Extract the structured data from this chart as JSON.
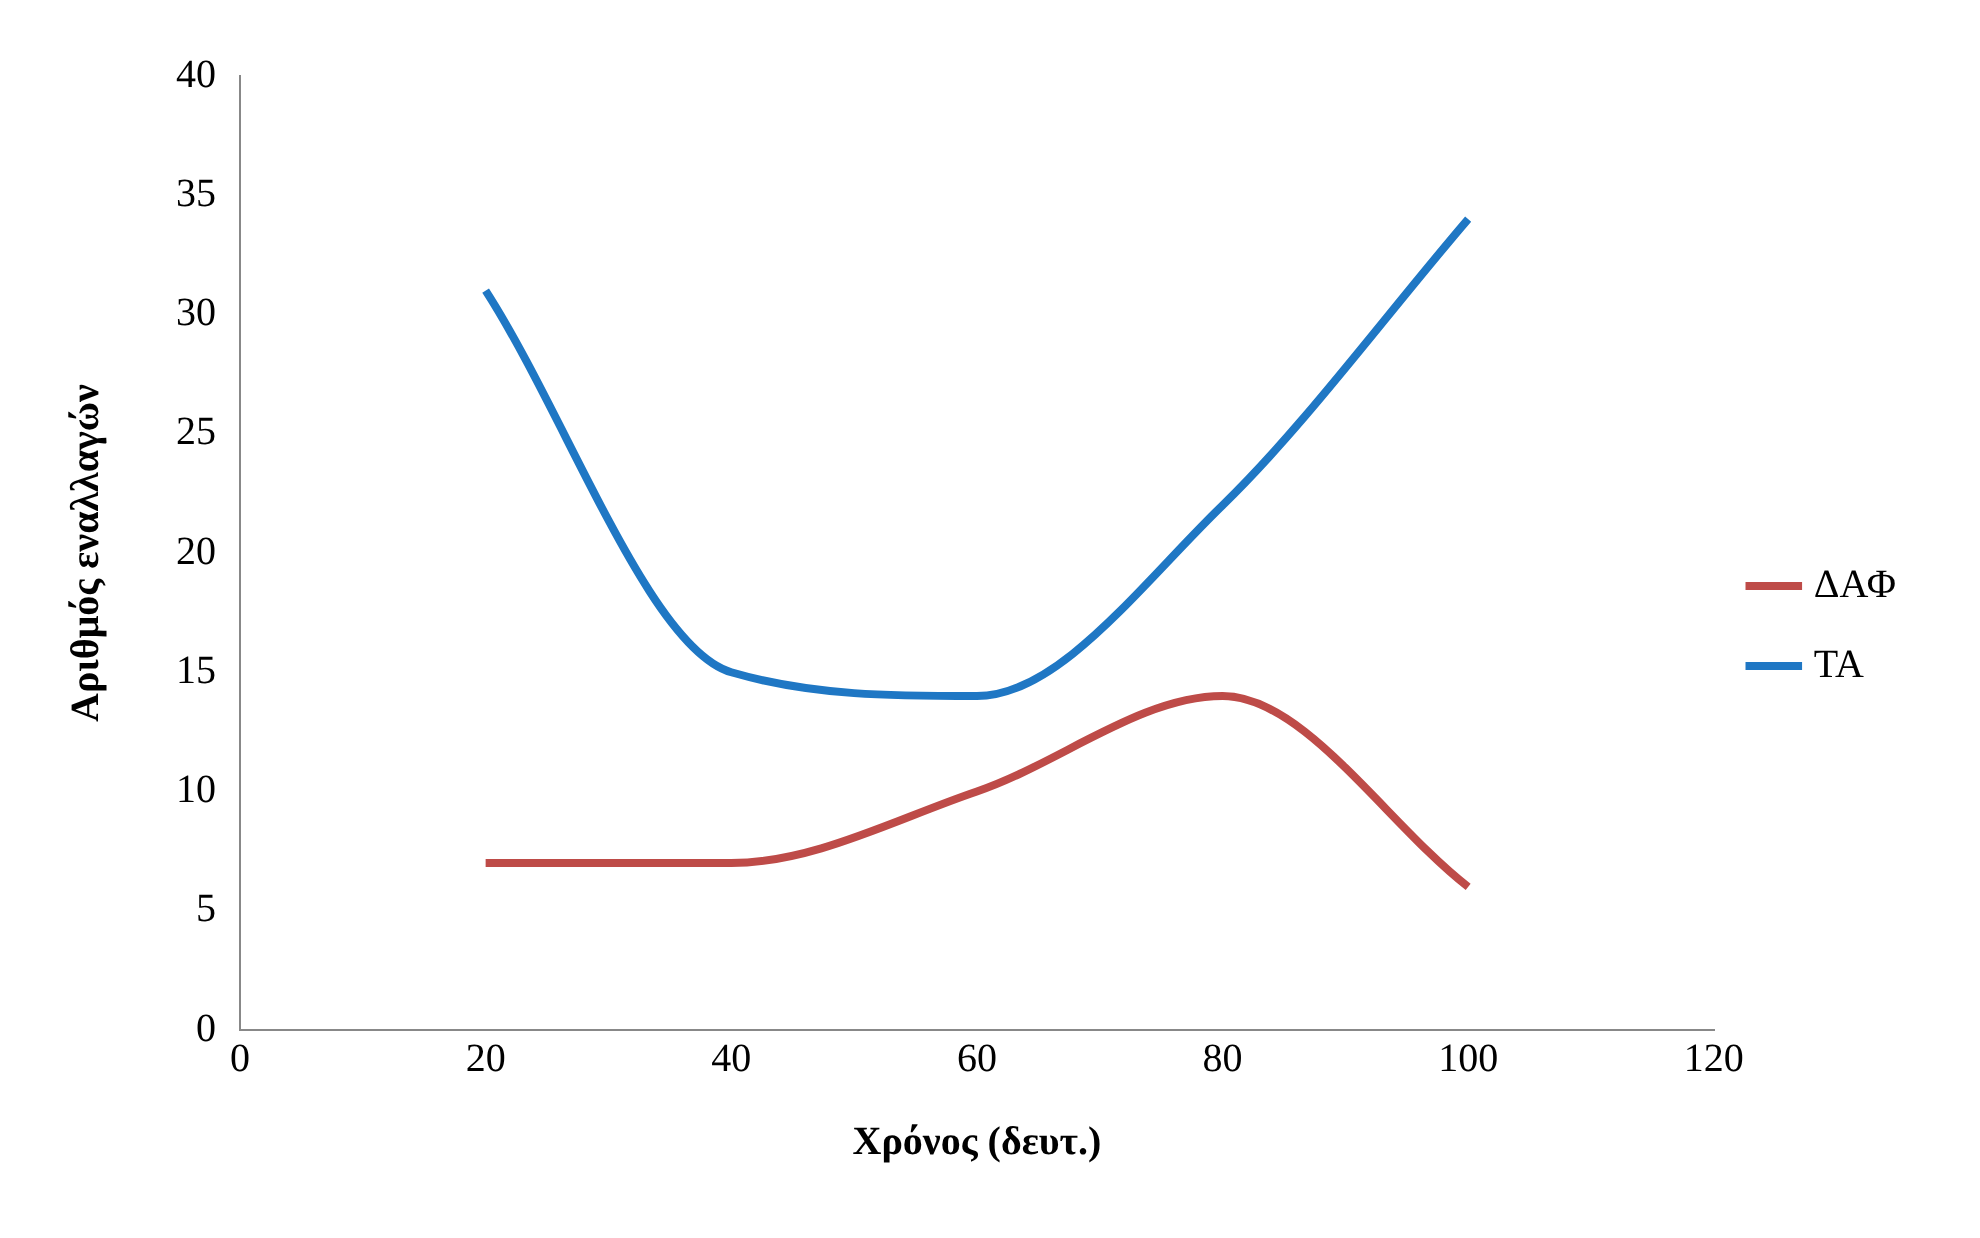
{
  "chart_data": {
    "type": "line",
    "xlabel": "Χρόνος (δευτ.)",
    "ylabel": "Αριθμός εναλλαγών",
    "x": [
      20,
      40,
      60,
      80,
      100
    ],
    "series": [
      {
        "name": "ΔΑΦ",
        "color": "#be4b48",
        "values": [
          7,
          7,
          10,
          14,
          6
        ]
      },
      {
        "name": "ΤΑ",
        "color": "#1f77c4",
        "values": [
          31,
          15,
          14,
          22,
          34
        ]
      }
    ],
    "xlim": [
      0,
      120
    ],
    "xticks": [
      0,
      20,
      40,
      60,
      80,
      100,
      120
    ],
    "ylim": [
      0,
      40
    ],
    "yticks": [
      0,
      5,
      10,
      15,
      20,
      25,
      30,
      35,
      40
    ],
    "grid": false,
    "legend": "right",
    "marker": "none",
    "line_style": "solid"
  }
}
